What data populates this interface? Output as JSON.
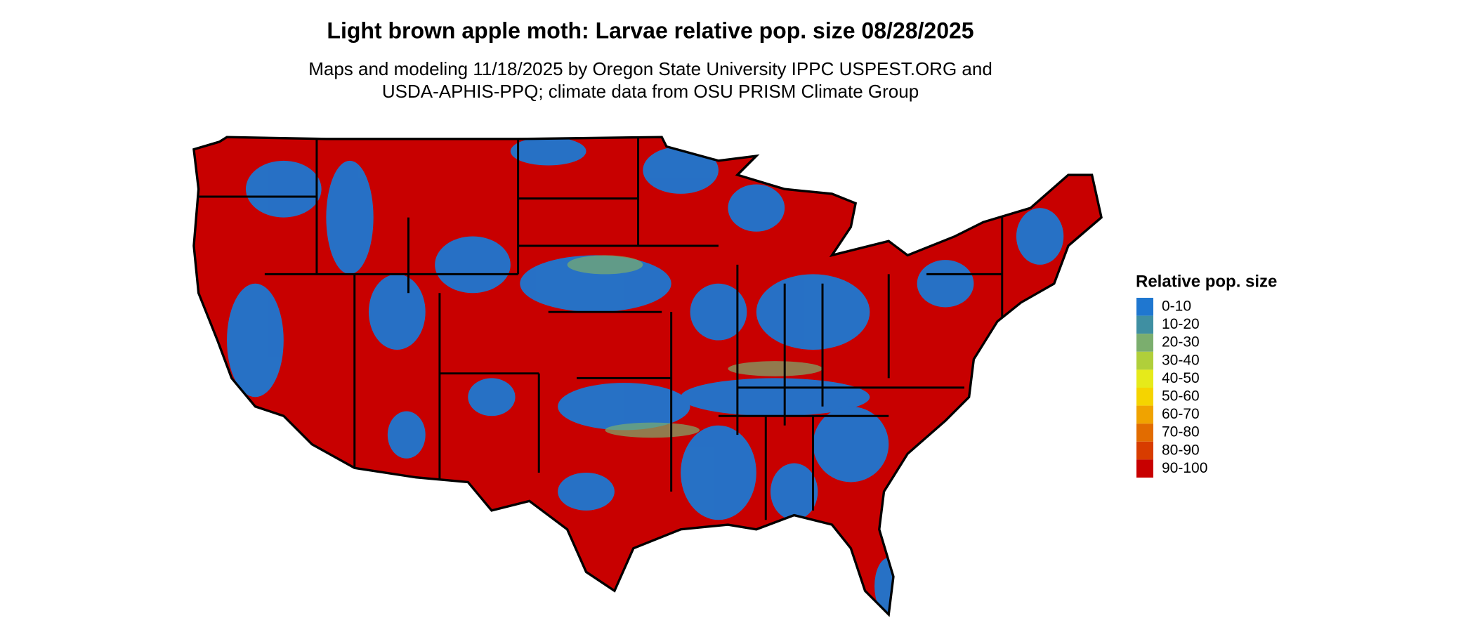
{
  "header": {
    "title": "Light brown apple moth: Larvae relative pop. size 08/28/2025",
    "subtitle": [
      "Maps and modeling 11/18/2025 by Oregon State University IPPC USPEST.ORG and",
      "USDA-APHIS-PPQ; climate data from OSU PRISM Climate Group"
    ]
  },
  "legend": {
    "title": "Relative pop. size",
    "items": [
      {
        "label": "0-10",
        "color": "#1f77d0"
      },
      {
        "label": "10-20",
        "color": "#3f8fa2"
      },
      {
        "label": "20-30",
        "color": "#7bae6e"
      },
      {
        "label": "30-40",
        "color": "#b0cf3a"
      },
      {
        "label": "40-50",
        "color": "#e6ea1a"
      },
      {
        "label": "50-60",
        "color": "#f5d400"
      },
      {
        "label": "60-70",
        "color": "#f0a300"
      },
      {
        "label": "70-80",
        "color": "#e26c00"
      },
      {
        "label": "80-90",
        "color": "#d83c00"
      },
      {
        "label": "90-100",
        "color": "#c80000"
      }
    ]
  }
}
